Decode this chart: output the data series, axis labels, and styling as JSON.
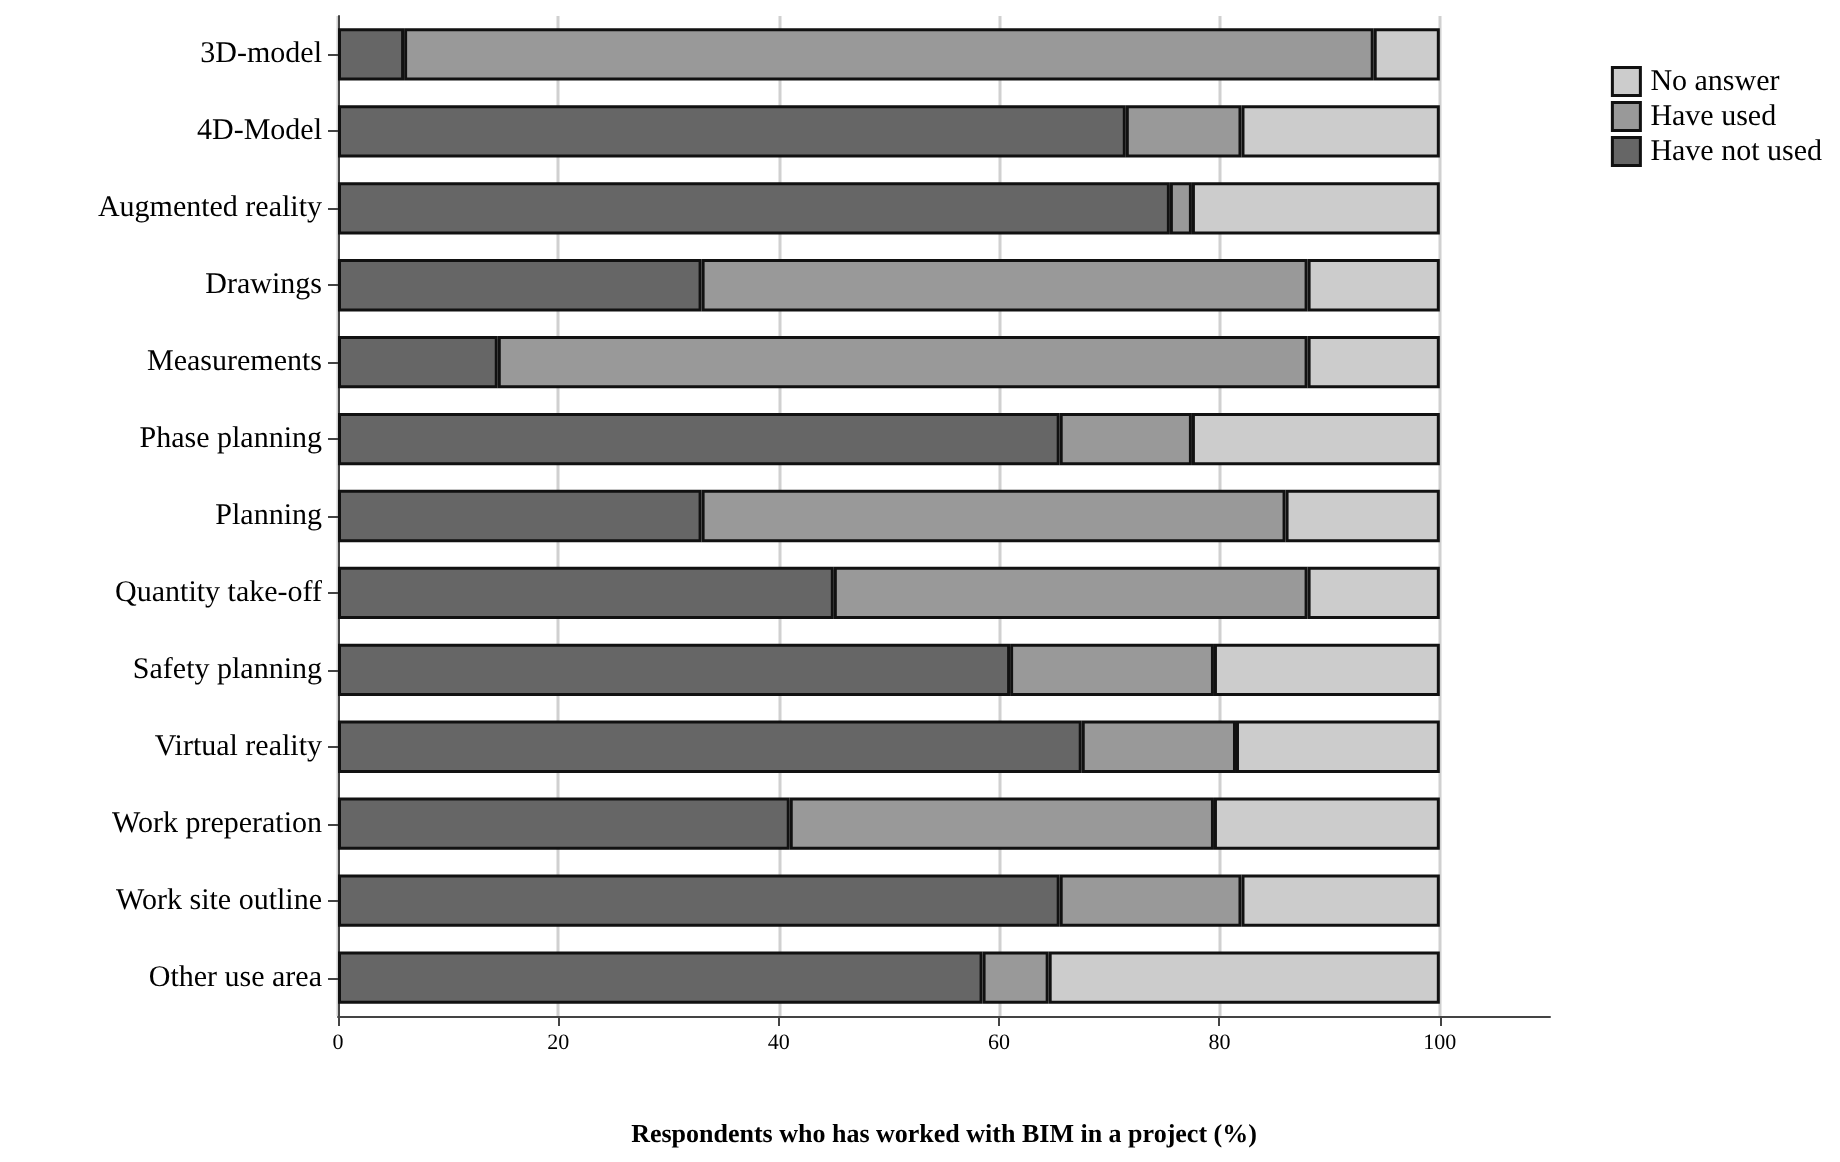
{
  "chart_data": {
    "type": "bar",
    "orientation": "horizontal",
    "stacked": true,
    "xlabel": "Respondents who has worked with BIM in a project (%)",
    "categories": [
      "3D-model",
      "4D-Model",
      "Augmented reality",
      "Drawings",
      "Measurements",
      "Phase planning",
      "Planning",
      "Quantity take-off",
      "Safety planning",
      "Virtual reality",
      "Work preperation",
      "Work site outline",
      "Other use area"
    ],
    "series": [
      {
        "name": "Have not used",
        "color": "#666666",
        "values": [
          6,
          71.5,
          75.5,
          33,
          14.5,
          65.5,
          33,
          45,
          61,
          67.5,
          41,
          65.5,
          58.5
        ]
      },
      {
        "name": "Have used",
        "color": "#999999",
        "values": [
          88,
          10.5,
          2,
          55,
          73.5,
          12,
          53,
          43,
          18.5,
          14,
          38.5,
          16.5,
          6
        ]
      },
      {
        "name": "No answer",
        "color": "#cccccc",
        "values": [
          6,
          18,
          22.5,
          12,
          12,
          22.5,
          14,
          12,
          20.5,
          18.5,
          20.5,
          18,
          35.5
        ]
      }
    ],
    "xlim": [
      0,
      110
    ],
    "xticks": [
      0,
      20,
      40,
      60,
      80,
      100
    ],
    "grid": "x",
    "legend": "top right"
  }
}
